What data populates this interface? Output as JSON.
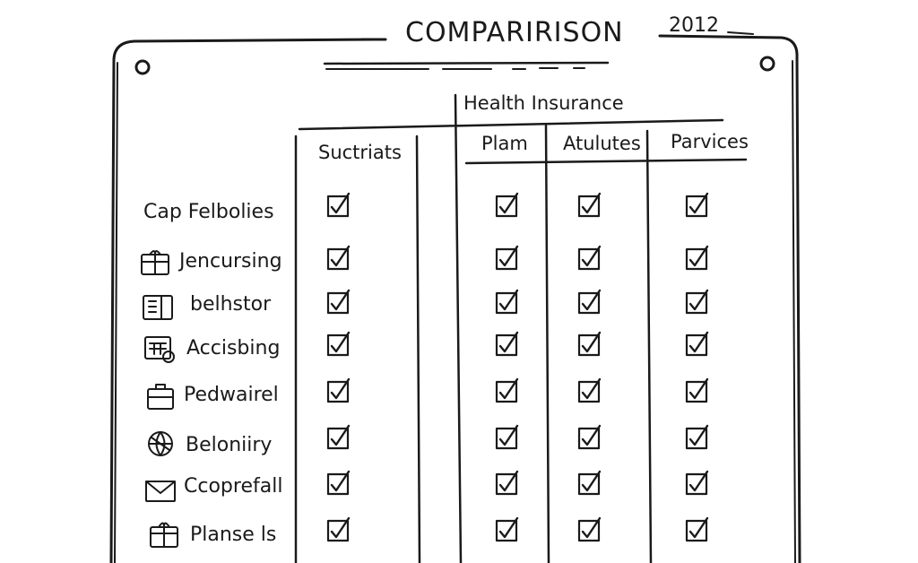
{
  "title": "COMPARIRISON",
  "year": "2012",
  "group_header": "Health Insurance",
  "columns": [
    "Suctriats",
    "Plam",
    "Atulutes",
    "Parvices"
  ],
  "rows": [
    {
      "label": "Cap Felbolies",
      "icon": "none",
      "checks": [
        true,
        true,
        true,
        true
      ]
    },
    {
      "label": "Jencursing",
      "icon": "gift-box-icon",
      "checks": [
        true,
        true,
        true,
        true
      ]
    },
    {
      "label": "belhstor",
      "icon": "document-icon",
      "checks": [
        true,
        true,
        true,
        true
      ]
    },
    {
      "label": "Accisbing",
      "icon": "calculator-icon",
      "checks": [
        true,
        true,
        true,
        true
      ]
    },
    {
      "label": "Pedwairel",
      "icon": "briefcase-icon",
      "checks": [
        true,
        true,
        true,
        true
      ]
    },
    {
      "label": "Beloniiry",
      "icon": "globe-icon",
      "checks": [
        true,
        true,
        true,
        true
      ]
    },
    {
      "label": "Ccoprefall",
      "icon": "envelope-icon",
      "checks": [
        true,
        true,
        true,
        true
      ]
    },
    {
      "label": "Planse ls",
      "icon": "gift-icon",
      "checks": [
        true,
        true,
        true,
        true
      ]
    }
  ]
}
